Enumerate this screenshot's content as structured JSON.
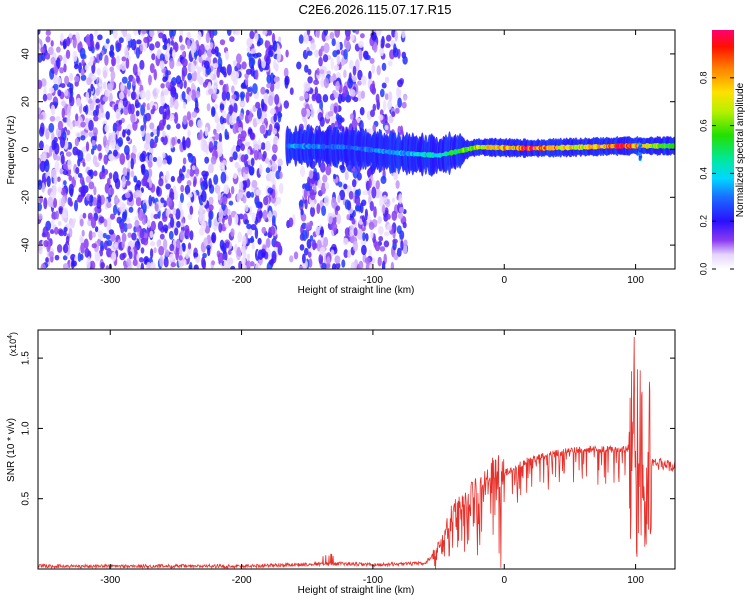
{
  "title": "C2E6.2026.115.07.17.R15",
  "chart_data": [
    {
      "type": "heatmap",
      "xlabel": "Height of straight line (km)",
      "ylabel": "Frequency (Hz)",
      "xlim": [
        -355,
        130
      ],
      "ylim": [
        -50,
        50
      ],
      "x_ticks": [
        -300,
        -200,
        -100,
        0,
        100
      ],
      "y_ticks": [
        -40,
        -20,
        0,
        20,
        40
      ],
      "x_tick_labels": [
        "-300",
        "-200",
        "-100",
        "0",
        "100"
      ],
      "y_tick_labels": [
        "-40",
        "-20",
        "0",
        "20",
        "40"
      ],
      "colorbar": {
        "label": "Normalized spectral amplitude",
        "range": [
          0,
          1
        ],
        "ticks": [
          0.0,
          0.2,
          0.4,
          0.6,
          0.8
        ],
        "tick_labels": [
          "0.0",
          "0.2",
          "0.4",
          "0.6",
          "0.8"
        ]
      },
      "ridge": {
        "description_points": [
          {
            "x": -165,
            "y": 1.5,
            "amp": 0.35
          },
          {
            "x": -120,
            "y": 1.0,
            "amp": 0.3
          },
          {
            "x": -80,
            "y": -1.5,
            "amp": 0.35
          },
          {
            "x": -50,
            "y": -2.5,
            "amp": 0.45
          },
          {
            "x": -20,
            "y": 1.0,
            "amp": 0.7
          },
          {
            "x": 20,
            "y": 0.5,
            "amp": 0.95
          },
          {
            "x": 60,
            "y": 1.0,
            "amp": 0.7
          },
          {
            "x": 90,
            "y": 1.5,
            "amp": 0.95
          },
          {
            "x": 125,
            "y": 1.5,
            "amp": 0.55
          }
        ]
      },
      "noise_region_x": [
        -355,
        -75
      ]
    },
    {
      "type": "line",
      "xlabel": "Height of straight line (km)",
      "ylabel": "SNR (10 * v/v)",
      "y_multiplier": "(x10",
      "y_multiplier_exp": "4",
      "y_multiplier_close": ")",
      "xlim": [
        -355,
        130
      ],
      "ylim": [
        0,
        17000
      ],
      "x_ticks": [
        -300,
        -200,
        -100,
        0,
        100
      ],
      "y_ticks": [
        5000,
        10000,
        15000
      ],
      "x_tick_labels": [
        "-300",
        "-200",
        "-100",
        "0",
        "100"
      ],
      "y_tick_labels": [
        "0.5",
        "1.0",
        "1.5"
      ],
      "series": [
        {
          "color": "#e8302a",
          "envelope": [
            [
              -355,
              200
            ],
            [
              -200,
              200
            ],
            [
              -160,
              300
            ],
            [
              -130,
              400
            ],
            [
              -100,
              300
            ],
            [
              -60,
              400
            ],
            [
              -50,
              1500
            ],
            [
              -40,
              3500
            ],
            [
              -30,
              4500
            ],
            [
              -20,
              5000
            ],
            [
              -10,
              6000
            ],
            [
              0,
              6800
            ],
            [
              20,
              7800
            ],
            [
              40,
              8300
            ],
            [
              60,
              8500
            ],
            [
              80,
              8500
            ],
            [
              95,
              8600
            ],
            [
              100,
              9000
            ],
            [
              105,
              8000
            ],
            [
              110,
              7700
            ],
            [
              120,
              7400
            ],
            [
              130,
              7400
            ]
          ]
        }
      ]
    }
  ]
}
